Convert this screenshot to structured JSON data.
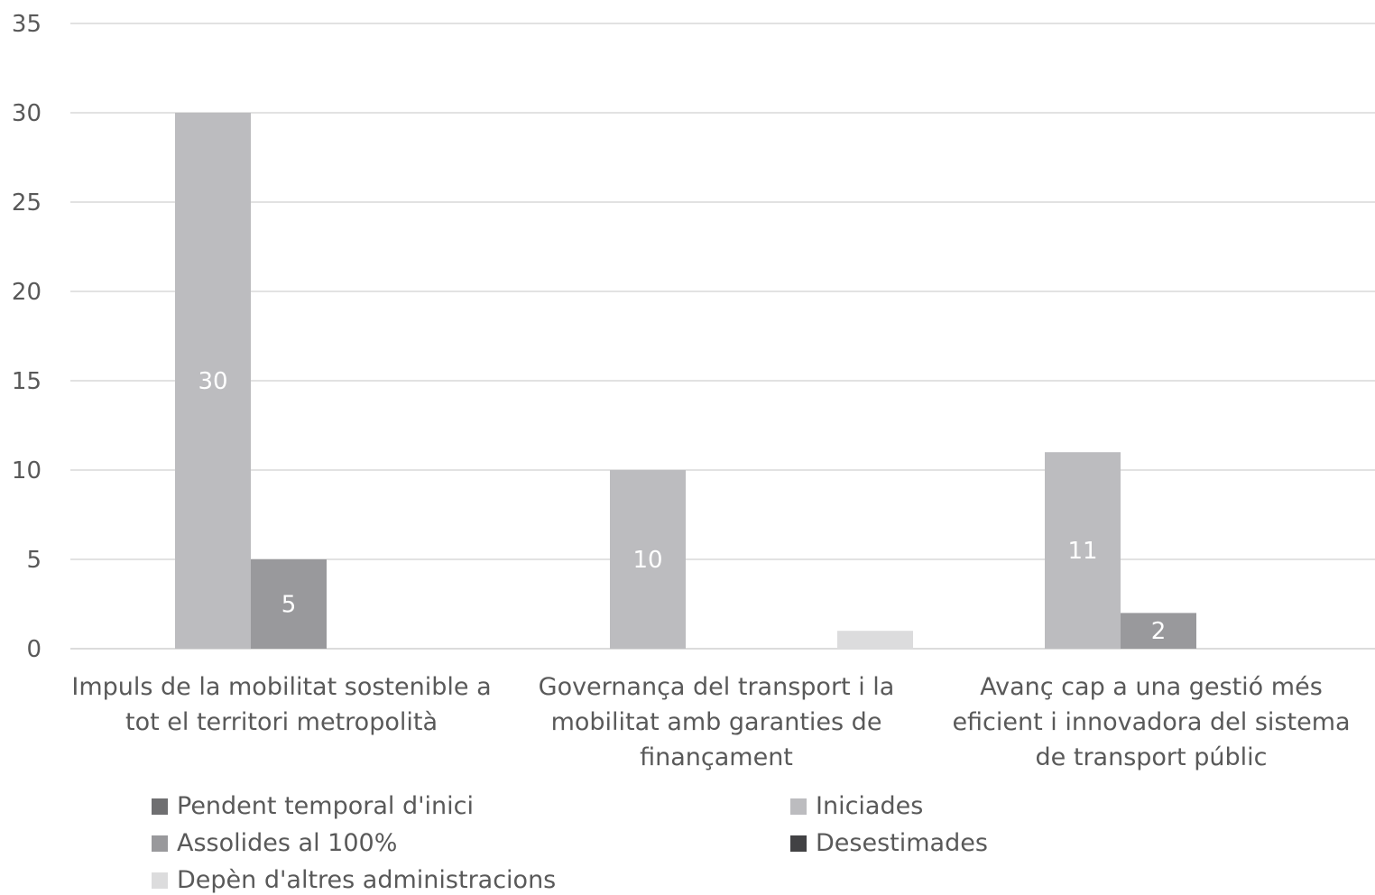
{
  "chart_data": {
    "type": "bar",
    "ylim": [
      0,
      35
    ],
    "yticks": [
      0,
      5,
      10,
      15,
      20,
      25,
      30,
      35
    ],
    "grid": true,
    "legend_position": "bottom",
    "categories": [
      [
        "Impuls de la mobilitat sostenible a",
        "tot el territori metropolità"
      ],
      [
        "Governança del transport i la",
        "mobilitat amb garanties de",
        "finançament"
      ],
      [
        "Avanç cap a una gestió més",
        "eficient i innovadora del sistema",
        "de transport públic"
      ]
    ],
    "series": [
      {
        "name": "Pendent temporal d'inici",
        "color": "#6f6f71",
        "values": [
          0,
          0,
          0
        ]
      },
      {
        "name": "Iniciades",
        "color": "#bcbcbf",
        "values": [
          30,
          10,
          11
        ]
      },
      {
        "name": "Assolides al 100%",
        "color": "#99999c",
        "values": [
          5,
          0,
          2
        ]
      },
      {
        "name": "Desestimades",
        "color": "#424244",
        "values": [
          0,
          0,
          0
        ]
      },
      {
        "name": "Depèn d'altres administracions",
        "color": "#dcdcdd",
        "values": [
          0,
          1,
          0
        ]
      }
    ],
    "data_labels": [
      {
        "series": 1,
        "category": 0,
        "text": "30"
      },
      {
        "series": 2,
        "category": 0,
        "text": "5"
      },
      {
        "series": 1,
        "category": 1,
        "text": "10"
      },
      {
        "series": 1,
        "category": 2,
        "text": "11"
      },
      {
        "series": 2,
        "category": 2,
        "text": "2"
      }
    ]
  }
}
